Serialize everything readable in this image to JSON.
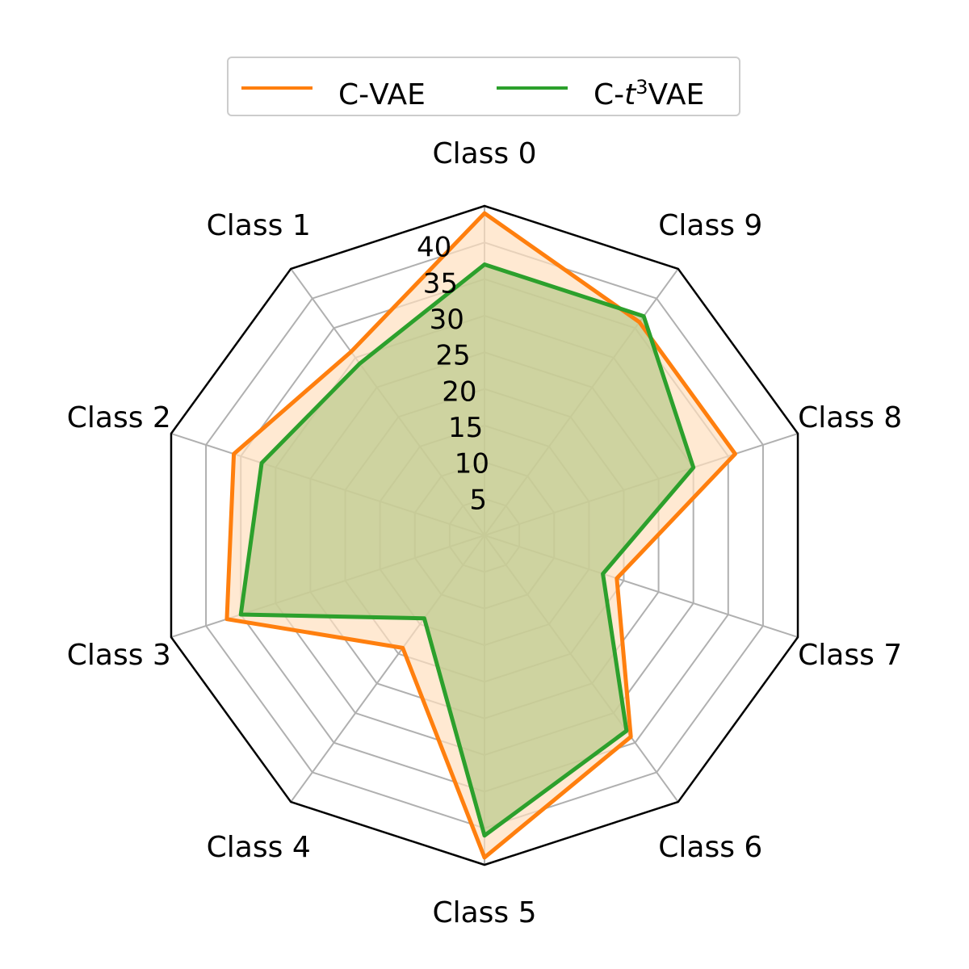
{
  "chart_data": {
    "type": "radar",
    "categories": [
      "Class 0",
      "Class 1",
      "Class 2",
      "Class 3",
      "Class 4",
      "Class 5",
      "Class 6",
      "Class 7",
      "Class 8",
      "Class 9"
    ],
    "radial_ticks": [
      5,
      10,
      15,
      20,
      25,
      30,
      35,
      40
    ],
    "rmax": 45,
    "grid": true,
    "legend_position": "top-center",
    "series": [
      {
        "name": "C-VAE",
        "name_prefix": "C-",
        "name_italic": "",
        "name_sup": "",
        "name_suffix": "VAE",
        "color": "#ff7f0e",
        "fill": "#ffdfbf",
        "values": [
          44,
          31,
          36,
          37,
          19,
          44,
          34,
          19,
          36,
          36
        ]
      },
      {
        "name": "C-t3VAE",
        "name_prefix": "C-",
        "name_italic": "t",
        "name_sup": "3",
        "name_suffix": "VAE",
        "color": "#2ca02c",
        "fill": "#b9c98a",
        "values": [
          37,
          29,
          32,
          35,
          14,
          41,
          33,
          17,
          30,
          37
        ]
      }
    ]
  }
}
